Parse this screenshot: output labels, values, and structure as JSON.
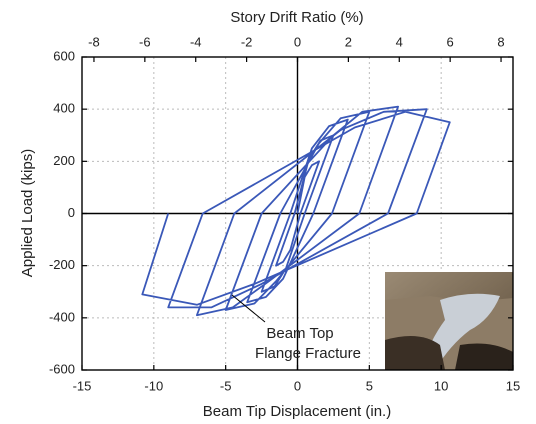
{
  "chart_data": {
    "type": "line",
    "title": "Story Drift Ratio (%)",
    "xlabel": "Beam Tip Displacement (in.)",
    "ylabel": "Applied Load (kips)",
    "annotations": [
      "Beam Top",
      "Flange Fracture"
    ],
    "color": "#3a58b8",
    "grid": true,
    "xlim": [
      -15,
      15
    ],
    "xticks": [
      -15,
      -10,
      -5,
      0,
      5,
      10,
      15
    ],
    "ylim": [
      -600,
      600
    ],
    "yticks": [
      -600,
      -400,
      -200,
      0,
      200,
      400,
      600
    ],
    "x2lim": [
      -8.47,
      8.47
    ],
    "x2ticks": [
      -8,
      -6,
      -4,
      -2,
      0,
      2,
      4,
      6,
      8
    ],
    "x": [
      0,
      0.5,
      1,
      1.5,
      0.2,
      -0.5,
      -1,
      -1.5,
      -0.2,
      0.8,
      1.6,
      2.5,
      0.5,
      -0.8,
      -1.6,
      -2.5,
      -0.5,
      1.0,
      2.2,
      3.5,
      1.1,
      -1.0,
      -2.2,
      -3.5,
      -1.2,
      1.5,
      3,
      5,
      2.4,
      -1.5,
      -3,
      -5,
      -2.5,
      2.5,
      4.5,
      7,
      4.3,
      -2,
      -4.5,
      -7,
      -4.4,
      3,
      6,
      9,
      6.3,
      -2.5,
      -6,
      -9,
      -6.6,
      4,
      7.5,
      10.6,
      8.3,
      -3,
      -7,
      -10.8,
      -9
    ],
    "values": [
      0,
      140,
      185,
      200,
      0,
      -140,
      -185,
      -200,
      0,
      210,
      280,
      300,
      0,
      -210,
      -280,
      -300,
      0,
      250,
      335,
      360,
      0,
      -250,
      -320,
      -340,
      0,
      270,
      365,
      390,
      0,
      -260,
      -345,
      -370,
      0,
      300,
      390,
      410,
      0,
      -260,
      -360,
      -390,
      0,
      320,
      390,
      400,
      0,
      -270,
      -360,
      -360,
      0,
      330,
      390,
      350,
      0,
      -270,
      -350,
      -310,
      0
    ]
  }
}
